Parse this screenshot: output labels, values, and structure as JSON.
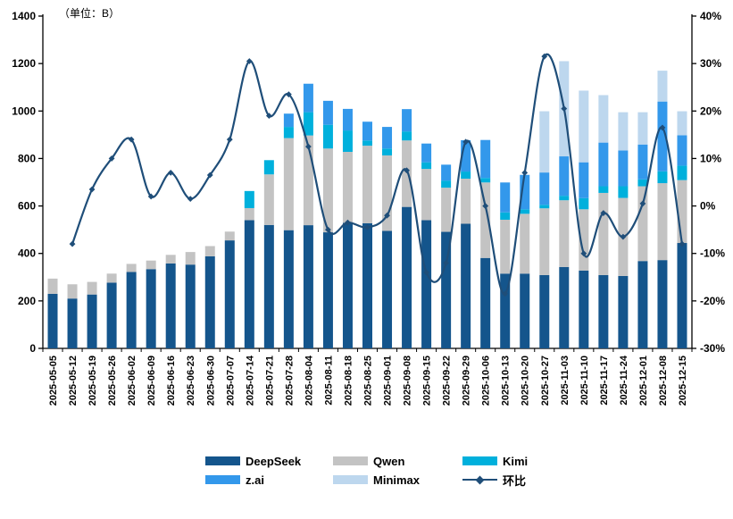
{
  "chart_data": {
    "type": "bar",
    "subtype": "stacked-bar-with-line-overlay",
    "unit_label": "（单位：B）",
    "grid": false,
    "legend_position": "bottom",
    "categories": [
      "2025-05-05",
      "2025-05-12",
      "2025-05-19",
      "2025-05-26",
      "2025-06-02",
      "2025-06-09",
      "2025-06-16",
      "2025-06-23",
      "2025-06-30",
      "2025-07-07",
      "2025-07-14",
      "2025-07-21",
      "2025-07-28",
      "2025-08-04",
      "2025-08-11",
      "2025-08-18",
      "2025-08-25",
      "2025-09-01",
      "2025-09-08",
      "2025-09-15",
      "2025-09-22",
      "2025-09-29",
      "2025-10-06",
      "2025-10-13",
      "2025-10-20",
      "2025-10-27",
      "2025-11-03",
      "2025-11-10",
      "2025-11-17",
      "2025-11-24",
      "2025-12-01",
      "2025-12-08",
      "2025-12-15"
    ],
    "series": [
      {
        "name": "DeepSeek",
        "type": "bar",
        "axis": "left",
        "color": "#14558C",
        "values": [
          230,
          210,
          227,
          277,
          322,
          334,
          358,
          353,
          388,
          455,
          540,
          520,
          498,
          519,
          489,
          529,
          527,
          495,
          596,
          540,
          491,
          525,
          381,
          315,
          315,
          309,
          343,
          328,
          309,
          305,
          368,
          372,
          444
        ]
      },
      {
        "name": "Qwen",
        "type": "bar",
        "axis": "left",
        "color": "#C3C3C3",
        "values": [
          64,
          60,
          53,
          38,
          34,
          36,
          36,
          53,
          43,
          37,
          51,
          213,
          388,
          378,
          353,
          299,
          327,
          318,
          280,
          216,
          186,
          190,
          318,
          227,
          252,
          281,
          281,
          258,
          346,
          329,
          315,
          324,
          265
        ]
      },
      {
        "name": "Kimi",
        "type": "bar",
        "axis": "left",
        "color": "#00B0DC",
        "values": [
          0,
          0,
          0,
          0,
          0,
          0,
          0,
          0,
          0,
          0,
          72,
          60,
          47,
          98,
          100,
          90,
          22,
          29,
          38,
          28,
          30,
          30,
          19,
          31,
          19,
          15,
          19,
          47,
          28,
          49,
          29,
          50,
          61
        ]
      },
      {
        "name": "z.ai",
        "type": "bar",
        "axis": "left",
        "color": "#3398EB",
        "values": [
          0,
          0,
          0,
          0,
          0,
          0,
          0,
          0,
          0,
          0,
          0,
          0,
          56,
          120,
          101,
          91,
          79,
          91,
          94,
          79,
          67,
          132,
          160,
          126,
          145,
          136,
          166,
          151,
          184,
          151,
          147,
          294,
          128
        ]
      },
      {
        "name": "Minimax",
        "type": "bar",
        "axis": "left",
        "color": "#BDD7EE",
        "values": [
          0,
          0,
          0,
          0,
          0,
          0,
          0,
          0,
          0,
          0,
          0,
          0,
          0,
          0,
          0,
          0,
          0,
          0,
          0,
          0,
          0,
          0,
          0,
          0,
          0,
          258,
          401,
          302,
          200,
          161,
          136,
          130,
          101
        ]
      },
      {
        "name": "环比",
        "type": "line",
        "axis": "right",
        "color": "#1F4E79",
        "values": [
          null,
          -8,
          3.5,
          10,
          14,
          2,
          7,
          1.5,
          6.5,
          14,
          30.5,
          19,
          23.5,
          12.5,
          -5,
          -3.5,
          -4.5,
          -2,
          7.5,
          -14,
          -12,
          13.5,
          0,
          -18.5,
          7,
          31.5,
          20.5,
          -10,
          -1.5,
          -6.5,
          0.5,
          16.5,
          -8
        ]
      }
    ],
    "left_axis": {
      "min": 0,
      "max": 1400,
      "step": 200,
      "labels": [
        "0",
        "200",
        "400",
        "600",
        "800",
        "1000",
        "1200",
        "1400"
      ]
    },
    "right_axis": {
      "min": -30,
      "max": 40,
      "step": 10,
      "labels": [
        "-30%",
        "-20%",
        "-10%",
        "0%",
        "10%",
        "20%",
        "30%",
        "40%"
      ]
    }
  }
}
